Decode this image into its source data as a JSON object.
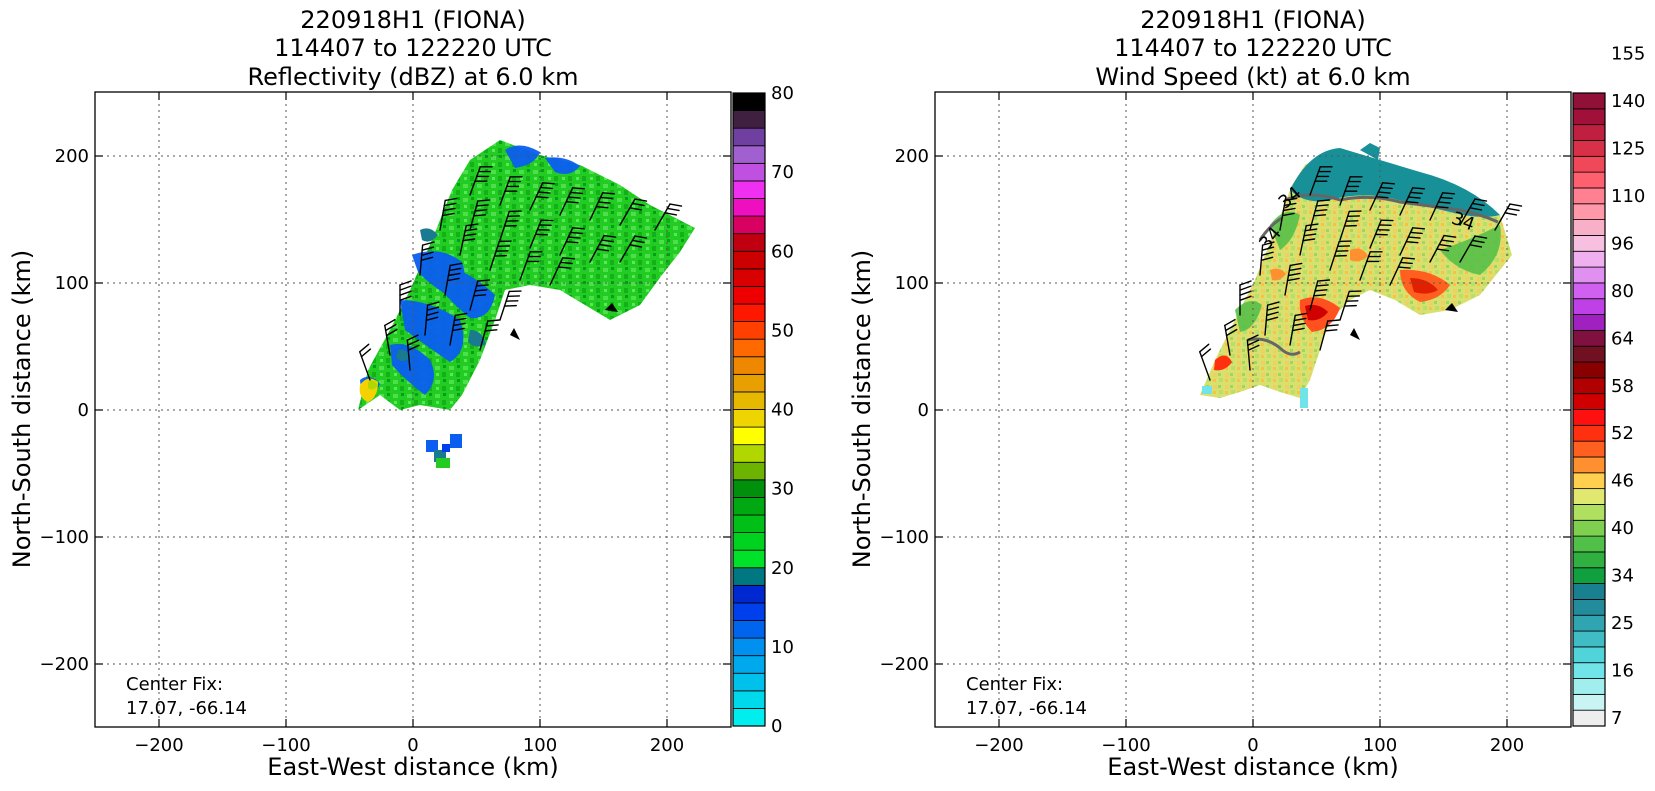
{
  "panels": [
    {
      "id": "reflectivity",
      "title_lines": [
        "220918H1 (FIONA)",
        "114407 to 122220 UTC",
        "Reflectivity (dBZ) at 6.0 km"
      ],
      "xlabel": "East-West distance (km)",
      "ylabel": "North-South distance (km)",
      "xticks": [
        "−200",
        "−100",
        "0",
        "100",
        "200"
      ],
      "yticks": [
        "200",
        "100",
        "0",
        "−100",
        "−200"
      ],
      "note_lines": [
        "Center Fix:",
        "17.07, -66.14"
      ],
      "colorbar": {
        "tick_labels": [
          "0",
          "10",
          "20",
          "30",
          "40",
          "50",
          "60",
          "70",
          "80"
        ],
        "colors": [
          "#00eeee",
          "#00d8ec",
          "#00c0ec",
          "#00a8ee",
          "#0090f0",
          "#0064ee",
          "#0040ec",
          "#0028d0",
          "#007882",
          "#00e22a",
          "#00d220",
          "#00c018",
          "#00a812",
          "#00900c",
          "#6cb400",
          "#b0d800",
          "#ffff00",
          "#eed400",
          "#e6b800",
          "#e8a000",
          "#ee8800",
          "#ff6a00",
          "#ff4000",
          "#ff1800",
          "#ee0000",
          "#d80000",
          "#cc0000",
          "#c00010",
          "#d80060",
          "#ee10c0",
          "#f030f0",
          "#c050e0",
          "#a060d0",
          "#7040a0",
          "#402040",
          "#000000"
        ]
      }
    },
    {
      "id": "windspeed",
      "title_lines": [
        "220918H1 (FIONA)",
        "114407 to 122220 UTC",
        "Wind Speed (kt) at 6.0 km"
      ],
      "xlabel": "East-West distance (km)",
      "ylabel": "North-South distance (km)",
      "xticks": [
        "−200",
        "−100",
        "0",
        "100",
        "200"
      ],
      "yticks": [
        "200",
        "100",
        "0",
        "−100",
        "−200"
      ],
      "note_lines": [
        "Center Fix:",
        "17.07, -66.14"
      ],
      "contour_labels": [
        "34",
        "34",
        "34"
      ],
      "colorbar": {
        "tick_labels": [
          "7",
          "16",
          "25",
          "34",
          "40",
          "46",
          "52",
          "58",
          "64",
          "80",
          "96",
          "110",
          "125",
          "140",
          "155"
        ],
        "colors": [
          "#eeeeee",
          "#c8f4f4",
          "#a0eeee",
          "#70e4e8",
          "#50d4da",
          "#40bcc4",
          "#30a4b0",
          "#228c9c",
          "#18808e",
          "#10a040",
          "#30b040",
          "#50c048",
          "#80d050",
          "#b0e060",
          "#e0e870",
          "#ffd050",
          "#ff9030",
          "#ff6020",
          "#ff3010",
          "#ff1010",
          "#d00000",
          "#b00000",
          "#880000",
          "#701020",
          "#801040",
          "#a020c0",
          "#c040e8",
          "#d060f0",
          "#e090f0",
          "#f0b0f0",
          "#f8c0e0",
          "#f8b0c8",
          "#ff98a8",
          "#ff8090",
          "#ff6070",
          "#f04858",
          "#d83048",
          "#c02040",
          "#a01038",
          "#901038"
        ]
      }
    }
  ]
}
